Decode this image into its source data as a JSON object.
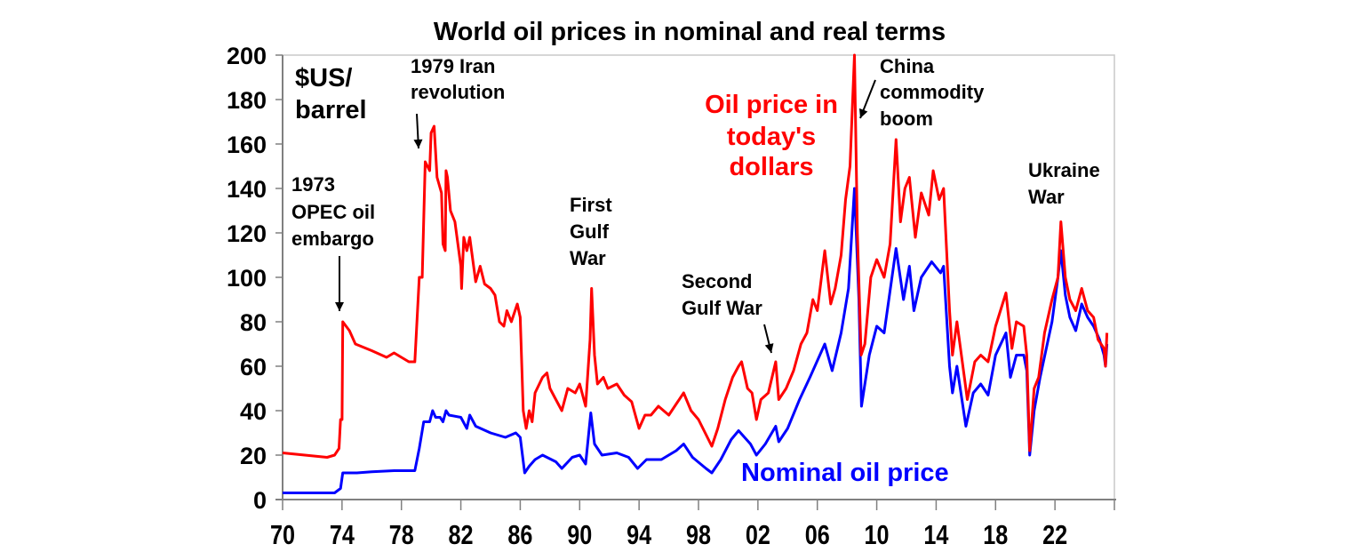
{
  "chart_data": {
    "type": "line",
    "title": "World oil prices in nominal and real terms",
    "ylabel": [
      "$US/",
      "barrel"
    ],
    "xlim": [
      1970,
      2026
    ],
    "ylim": [
      0,
      200
    ],
    "yticks": [
      0,
      20,
      40,
      60,
      80,
      100,
      120,
      140,
      160,
      180,
      200
    ],
    "xticks": [
      1970,
      1974,
      1978,
      1982,
      1986,
      1990,
      1994,
      1998,
      2002,
      2006,
      2010,
      2014,
      2018,
      2022
    ],
    "xtick_labels": [
      "70",
      "74",
      "78",
      "82",
      "86",
      "90",
      "94",
      "98",
      "02",
      "06",
      "10",
      "14",
      "18",
      "22"
    ],
    "grid": false,
    "series": [
      {
        "name": "Oil price in today's dollars",
        "label_lines": [
          "Oil price in",
          "today's",
          "dollars"
        ],
        "color": "#ff0000",
        "points": [
          [
            1970,
            21
          ],
          [
            1973.0,
            19
          ],
          [
            1973.5,
            20
          ],
          [
            1973.8,
            23
          ],
          [
            1973.9,
            36
          ],
          [
            1974.0,
            36
          ],
          [
            1974.05,
            80
          ],
          [
            1974.5,
            76
          ],
          [
            1974.9,
            70
          ],
          [
            1976,
            67
          ],
          [
            1977,
            64
          ],
          [
            1977.5,
            66
          ],
          [
            1978,
            64
          ],
          [
            1978.5,
            62
          ],
          [
            1978.9,
            62
          ],
          [
            1979.2,
            100
          ],
          [
            1979.4,
            100
          ],
          [
            1979.6,
            152
          ],
          [
            1979.9,
            148
          ],
          [
            1980.0,
            165
          ],
          [
            1980.2,
            168
          ],
          [
            1980.4,
            145
          ],
          [
            1980.7,
            138
          ],
          [
            1980.8,
            115
          ],
          [
            1980.95,
            112
          ],
          [
            1981.0,
            148
          ],
          [
            1981.1,
            145
          ],
          [
            1981.3,
            130
          ],
          [
            1981.6,
            125
          ],
          [
            1982.0,
            105
          ],
          [
            1982.05,
            95
          ],
          [
            1982.2,
            118
          ],
          [
            1982.4,
            112
          ],
          [
            1982.6,
            118
          ],
          [
            1983,
            98
          ],
          [
            1983.3,
            105
          ],
          [
            1983.6,
            97
          ],
          [
            1984,
            95
          ],
          [
            1984.3,
            92
          ],
          [
            1984.6,
            80
          ],
          [
            1984.9,
            78
          ],
          [
            1985.1,
            85
          ],
          [
            1985.4,
            80
          ],
          [
            1985.8,
            88
          ],
          [
            1986.0,
            82
          ],
          [
            1986.2,
            40
          ],
          [
            1986.4,
            32
          ],
          [
            1986.6,
            40
          ],
          [
            1986.8,
            35
          ],
          [
            1987,
            48
          ],
          [
            1987.5,
            55
          ],
          [
            1987.8,
            57
          ],
          [
            1988,
            50
          ],
          [
            1988.4,
            45
          ],
          [
            1988.8,
            40
          ],
          [
            1989.2,
            50
          ],
          [
            1989.7,
            48
          ],
          [
            1990.0,
            52
          ],
          [
            1990.4,
            42
          ],
          [
            1990.7,
            72
          ],
          [
            1990.8,
            95
          ],
          [
            1991.0,
            65
          ],
          [
            1991.2,
            52
          ],
          [
            1991.6,
            55
          ],
          [
            1991.9,
            50
          ],
          [
            1992.5,
            52
          ],
          [
            1993,
            47
          ],
          [
            1993.5,
            44
          ],
          [
            1994,
            32
          ],
          [
            1994.4,
            38
          ],
          [
            1994.8,
            38
          ],
          [
            1995.3,
            42
          ],
          [
            1996,
            38
          ],
          [
            1996.6,
            44
          ],
          [
            1997,
            48
          ],
          [
            1997.5,
            40
          ],
          [
            1998,
            36
          ],
          [
            1998.6,
            28
          ],
          [
            1998.9,
            24
          ],
          [
            1999.3,
            32
          ],
          [
            1999.8,
            45
          ],
          [
            2000.3,
            55
          ],
          [
            2000.7,
            60
          ],
          [
            2000.9,
            62
          ],
          [
            2001.3,
            50
          ],
          [
            2001.6,
            48
          ],
          [
            2001.9,
            36
          ],
          [
            2002.2,
            45
          ],
          [
            2002.7,
            48
          ],
          [
            2003.2,
            62
          ],
          [
            2003.4,
            45
          ],
          [
            2003.9,
            50
          ],
          [
            2004.4,
            58
          ],
          [
            2004.9,
            70
          ],
          [
            2005.3,
            75
          ],
          [
            2005.7,
            90
          ],
          [
            2006.0,
            85
          ],
          [
            2006.5,
            112
          ],
          [
            2006.9,
            88
          ],
          [
            2007.2,
            95
          ],
          [
            2007.6,
            110
          ],
          [
            2007.9,
            135
          ],
          [
            2008.2,
            150
          ],
          [
            2008.5,
            200
          ],
          [
            2008.7,
            120
          ],
          [
            2008.95,
            65
          ],
          [
            2009.2,
            70
          ],
          [
            2009.6,
            100
          ],
          [
            2010,
            108
          ],
          [
            2010.5,
            100
          ],
          [
            2010.9,
            115
          ],
          [
            2011.3,
            162
          ],
          [
            2011.6,
            125
          ],
          [
            2011.9,
            140
          ],
          [
            2012.2,
            145
          ],
          [
            2012.6,
            118
          ],
          [
            2013,
            138
          ],
          [
            2013.5,
            128
          ],
          [
            2013.8,
            148
          ],
          [
            2014.2,
            135
          ],
          [
            2014.5,
            140
          ],
          [
            2014.9,
            85
          ],
          [
            2015.1,
            65
          ],
          [
            2015.4,
            80
          ],
          [
            2015.9,
            55
          ],
          [
            2016.1,
            45
          ],
          [
            2016.6,
            62
          ],
          [
            2017,
            65
          ],
          [
            2017.5,
            62
          ],
          [
            2018.0,
            78
          ],
          [
            2018.7,
            93
          ],
          [
            2019.1,
            68
          ],
          [
            2019.4,
            80
          ],
          [
            2019.9,
            78
          ],
          [
            2020.1,
            65
          ],
          [
            2020.3,
            22
          ],
          [
            2020.6,
            50
          ],
          [
            2020.9,
            55
          ],
          [
            2021.3,
            75
          ],
          [
            2021.8,
            90
          ],
          [
            2022.2,
            100
          ],
          [
            2022.4,
            125
          ],
          [
            2022.7,
            100
          ],
          [
            2023.0,
            90
          ],
          [
            2023.4,
            85
          ],
          [
            2023.8,
            95
          ],
          [
            2024.2,
            85
          ],
          [
            2024.6,
            82
          ],
          [
            2024.9,
            72
          ],
          [
            2025.3,
            68
          ],
          [
            2025.4,
            60
          ],
          [
            2025.5,
            75
          ]
        ]
      },
      {
        "name": "Nominal oil price",
        "label_lines": [
          "Nominal oil price"
        ],
        "color": "#0000ff",
        "points": [
          [
            1970,
            3
          ],
          [
            1973.5,
            3
          ],
          [
            1973.9,
            5
          ],
          [
            1974.05,
            12
          ],
          [
            1975,
            12
          ],
          [
            1976,
            12.5
          ],
          [
            1977.5,
            13
          ],
          [
            1978.9,
            13
          ],
          [
            1979.2,
            23
          ],
          [
            1979.5,
            35
          ],
          [
            1979.9,
            35
          ],
          [
            1980.1,
            40
          ],
          [
            1980.3,
            37
          ],
          [
            1980.6,
            37
          ],
          [
            1980.8,
            35
          ],
          [
            1981.0,
            40
          ],
          [
            1981.2,
            38
          ],
          [
            1982,
            37
          ],
          [
            1982.4,
            32
          ],
          [
            1982.6,
            38
          ],
          [
            1983,
            33
          ],
          [
            1984,
            30
          ],
          [
            1985,
            28
          ],
          [
            1985.7,
            30
          ],
          [
            1986.0,
            28
          ],
          [
            1986.3,
            12
          ],
          [
            1986.6,
            15
          ],
          [
            1987,
            18
          ],
          [
            1987.5,
            20
          ],
          [
            1988.4,
            17
          ],
          [
            1988.8,
            14
          ],
          [
            1989.5,
            19
          ],
          [
            1990,
            20
          ],
          [
            1990.4,
            16
          ],
          [
            1990.75,
            39
          ],
          [
            1991.0,
            25
          ],
          [
            1991.5,
            20
          ],
          [
            1992.5,
            21
          ],
          [
            1993.3,
            19
          ],
          [
            1993.9,
            14
          ],
          [
            1994.5,
            18
          ],
          [
            1995.5,
            18
          ],
          [
            1996.5,
            22
          ],
          [
            1997,
            25
          ],
          [
            1997.6,
            19
          ],
          [
            1998.5,
            14
          ],
          [
            1998.9,
            12
          ],
          [
            1999.5,
            18
          ],
          [
            2000.2,
            27
          ],
          [
            2000.7,
            31
          ],
          [
            2001.5,
            25
          ],
          [
            2001.9,
            20
          ],
          [
            2002.5,
            25
          ],
          [
            2003.2,
            33
          ],
          [
            2003.4,
            26
          ],
          [
            2004,
            32
          ],
          [
            2004.8,
            45
          ],
          [
            2005.5,
            55
          ],
          [
            2006.5,
            70
          ],
          [
            2007,
            58
          ],
          [
            2007.6,
            75
          ],
          [
            2008.1,
            95
          ],
          [
            2008.5,
            140
          ],
          [
            2008.8,
            90
          ],
          [
            2008.97,
            42
          ],
          [
            2009.5,
            65
          ],
          [
            2010,
            78
          ],
          [
            2010.5,
            75
          ],
          [
            2011.3,
            113
          ],
          [
            2011.8,
            90
          ],
          [
            2012.2,
            105
          ],
          [
            2012.5,
            85
          ],
          [
            2013,
            100
          ],
          [
            2013.7,
            107
          ],
          [
            2014.3,
            102
          ],
          [
            2014.5,
            105
          ],
          [
            2014.9,
            60
          ],
          [
            2015.1,
            48
          ],
          [
            2015.4,
            60
          ],
          [
            2016.0,
            33
          ],
          [
            2016.5,
            48
          ],
          [
            2017,
            52
          ],
          [
            2017.5,
            47
          ],
          [
            2018,
            65
          ],
          [
            2018.7,
            75
          ],
          [
            2019,
            55
          ],
          [
            2019.4,
            65
          ],
          [
            2019.9,
            65
          ],
          [
            2020.1,
            58
          ],
          [
            2020.3,
            20
          ],
          [
            2020.6,
            40
          ],
          [
            2021,
            55
          ],
          [
            2021.8,
            80
          ],
          [
            2022.2,
            100
          ],
          [
            2022.4,
            112
          ],
          [
            2022.7,
            92
          ],
          [
            2023,
            82
          ],
          [
            2023.4,
            76
          ],
          [
            2023.8,
            88
          ],
          [
            2024.2,
            82
          ],
          [
            2024.6,
            78
          ],
          [
            2025.0,
            72
          ],
          [
            2025.3,
            65
          ],
          [
            2025.4,
            60
          ],
          [
            2025.5,
            70
          ]
        ]
      }
    ],
    "annotations": [
      {
        "lines": [
          "1973",
          "OPEC oil",
          "embargo"
        ],
        "arrow": true
      },
      {
        "lines": [
          "1979 Iran",
          "revolution"
        ],
        "arrow": true
      },
      {
        "lines": [
          "First",
          "Gulf",
          "War"
        ],
        "arrow": false
      },
      {
        "lines": [
          "Second",
          "Gulf War"
        ],
        "arrow": true
      },
      {
        "lines": [
          "China",
          "commodity",
          "boom"
        ],
        "arrow": true
      },
      {
        "lines": [
          "Ukraine",
          "War"
        ],
        "arrow": false
      }
    ]
  }
}
